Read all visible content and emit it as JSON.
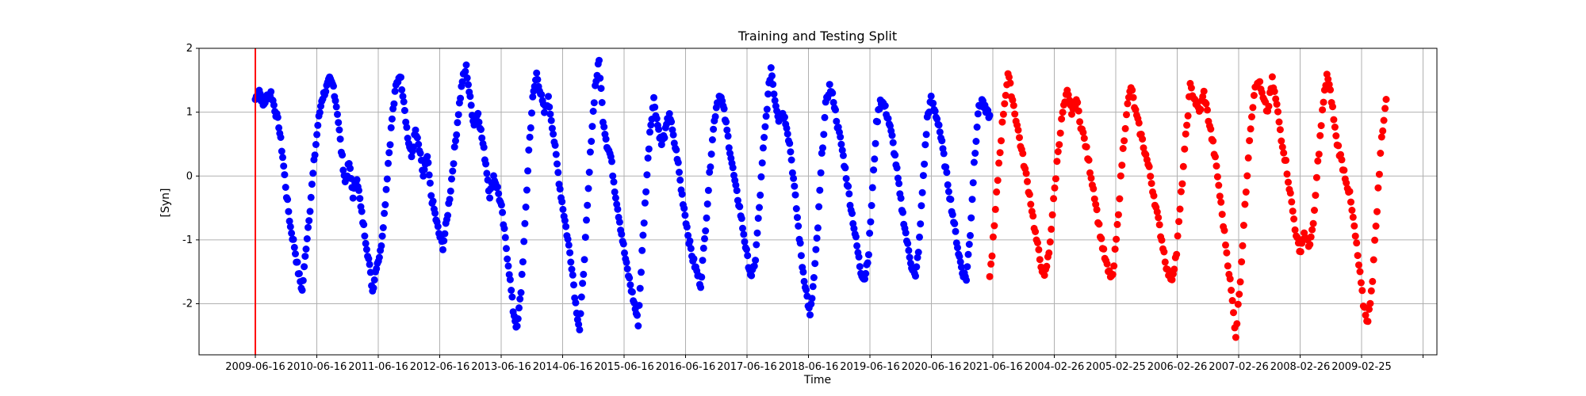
{
  "chart_data": {
    "type": "scatter",
    "title": "Training and Testing Split",
    "xlabel": "Time",
    "ylabel": "[Syn]",
    "ylim": [
      -2.8,
      2.0
    ],
    "yticks": [
      -2,
      -1,
      0,
      1,
      2
    ],
    "x_tick_labels": [
      "2009-06-16",
      "2010-06-16",
      "2011-06-16",
      "2012-06-16",
      "2013-06-16",
      "2014-06-16",
      "2015-06-16",
      "2016-06-16",
      "2017-06-16",
      "2018-06-16",
      "2019-06-16",
      "2020-06-16",
      "2021-06-16",
      "2004-02-26",
      "2005-02-25",
      "2006-02-26",
      "2007-02-26",
      "2008-02-26",
      "2009-02-25",
      ""
    ],
    "grid": true,
    "marker_colors": {
      "train": "#0000ff",
      "test": "#ff0000"
    },
    "split_line_color": "#ff0000",
    "split_line_at_tick": 0,
    "series": [
      {
        "role": "train",
        "x_start_tick": 0,
        "x_end_tick": 11.95,
        "values": [
          1.2,
          1.35,
          1.1,
          1.25,
          1.3,
          1.05,
          0.8,
          0.3,
          -0.3,
          -0.8,
          -1.1,
          -1.5,
          -1.8,
          -1.1,
          -0.5,
          0.2,
          0.8,
          1.2,
          1.35,
          1.5,
          1.4,
          1.0,
          0.4,
          -0.1,
          0.2,
          -0.3,
          0.0,
          -0.5,
          -0.9,
          -1.3,
          -1.8,
          -1.4,
          -1.2,
          -0.6,
          0.2,
          0.9,
          1.4,
          1.6,
          1.2,
          0.6,
          0.3,
          0.7,
          0.4,
          0.0,
          0.3,
          -0.3,
          -0.6,
          -0.9,
          -1.1,
          -0.7,
          -0.2,
          0.4,
          1.0,
          1.5,
          1.7,
          1.2,
          0.8,
          1.0,
          0.6,
          0.2,
          -0.3,
          0.0,
          -0.2,
          -0.5,
          -1.0,
          -1.5,
          -2.1,
          -2.4,
          -1.8,
          -0.8,
          0.4,
          1.2,
          1.6,
          1.3,
          1.0,
          1.2,
          0.8,
          0.3,
          -0.2,
          -0.6,
          -1.0,
          -1.4,
          -2.0,
          -2.4,
          -1.5,
          -0.5,
          0.6,
          1.4,
          1.8,
          0.9,
          0.5,
          0.3,
          -0.2,
          -0.6,
          -1.0,
          -1.4,
          -1.7,
          -2.0,
          -2.3,
          -1.2,
          -0.2,
          0.7,
          1.2,
          0.8,
          0.5,
          0.7,
          1.0,
          0.6,
          0.3,
          -0.2,
          -0.6,
          -1.0,
          -1.3,
          -1.5,
          -1.7,
          -1.0,
          -0.2,
          0.6,
          1.1,
          1.3,
          1.0,
          0.6,
          0.2,
          -0.2,
          -0.5,
          -0.9,
          -1.3,
          -1.6,
          -1.3,
          -0.5,
          0.4,
          1.1,
          1.7,
          1.2,
          0.9,
          1.0,
          0.8,
          0.4,
          -0.2,
          -0.8,
          -1.4,
          -1.8,
          -2.2,
          -1.6,
          -0.8,
          0.3,
          1.1,
          1.4,
          1.2,
          0.8,
          0.5,
          0.1,
          -0.3,
          -0.7,
          -1.1,
          -1.5,
          -1.6,
          -1.2,
          -0.2,
          0.8,
          1.2,
          1.1,
          0.9,
          0.6,
          0.2,
          -0.3,
          -0.7,
          -1.1,
          -1.4,
          -1.6,
          -1.0,
          0.0,
          0.9,
          1.2,
          1.0,
          0.8,
          0.4,
          0.0,
          -0.4,
          -0.8,
          -1.2,
          -1.5,
          -1.6,
          -0.9,
          0.2,
          1.0,
          1.2,
          1.0,
          0.95
        ]
      },
      {
        "role": "test",
        "x_start_tick": 11.95,
        "x_end_tick": 18.4,
        "values": [
          -1.6,
          -0.8,
          0.2,
          1.0,
          1.6,
          1.2,
          0.8,
          0.4,
          0.0,
          -0.4,
          -0.9,
          -1.3,
          -1.6,
          -1.2,
          -0.4,
          0.4,
          1.0,
          1.3,
          1.0,
          1.2,
          0.8,
          0.5,
          0.1,
          -0.3,
          -0.8,
          -1.2,
          -1.5,
          -1.6,
          -0.8,
          0.2,
          1.0,
          1.4,
          1.0,
          0.7,
          0.4,
          0.1,
          -0.3,
          -0.7,
          -1.1,
          -1.5,
          -1.6,
          -1.2,
          -0.3,
          0.6,
          1.4,
          1.2,
          1.0,
          1.3,
          0.9,
          0.5,
          0.0,
          -0.6,
          -1.2,
          -1.8,
          -2.5,
          -1.6,
          -0.5,
          0.6,
          1.3,
          1.5,
          1.2,
          1.0,
          1.5,
          1.1,
          0.6,
          0.2,
          -0.3,
          -0.8,
          -1.2,
          -0.9,
          -1.1,
          -0.8,
          0.2,
          1.0,
          1.6,
          1.2,
          0.6,
          0.3,
          0.0,
          -0.3,
          -0.8,
          -1.4,
          -2.0,
          -2.3,
          -1.6,
          -0.5,
          0.6,
          1.2
        ]
      }
    ]
  }
}
